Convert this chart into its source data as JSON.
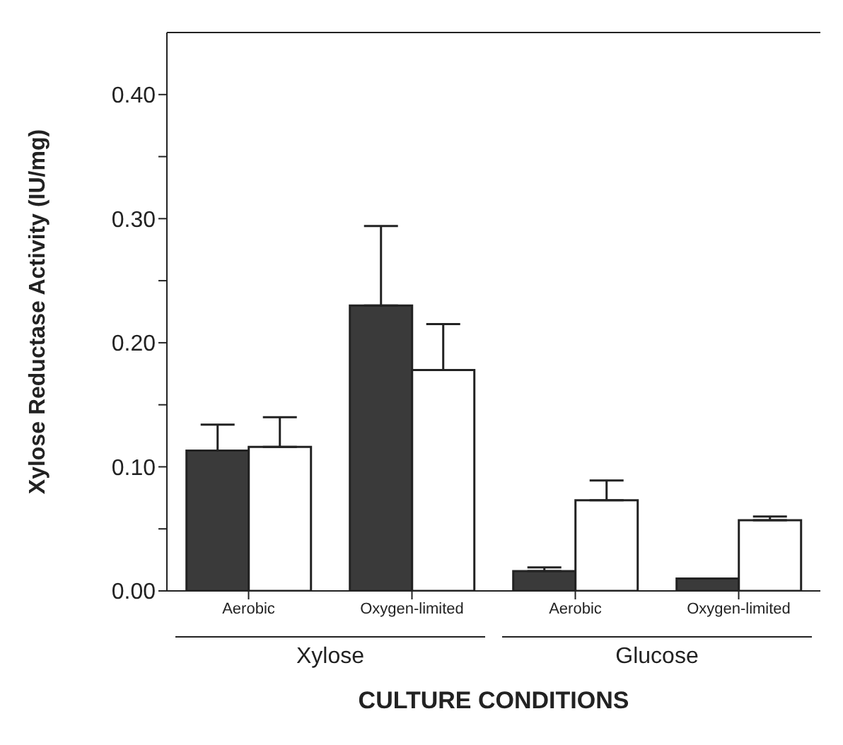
{
  "chart_data": {
    "type": "bar",
    "xlabel": "CULTURE CONDITIONS",
    "ylabel": "Xylose  Reductase  Activity  (IU/mg)",
    "categories": [
      "Aerobic",
      "Oxygen-limited",
      "Aerobic",
      "Oxygen-limited"
    ],
    "series": [
      {
        "color": "#3a3a3a",
        "values": [
          0.113,
          0.23,
          0.016,
          0.01
        ],
        "errors": [
          [
            0.113,
            0.134
          ],
          [
            0.23,
            0.294
          ],
          [
            0.016,
            0.019
          ],
          null
        ]
      },
      {
        "color": "#ffffff",
        "values": [
          0.116,
          0.178,
          0.073,
          0.057
        ],
        "errors": [
          [
            0.116,
            0.14
          ],
          [
            0.178,
            0.215
          ],
          [
            0.073,
            0.089
          ],
          [
            0.057,
            0.06
          ]
        ]
      }
    ],
    "annotations": [
      "Xylose",
      "Glucose"
    ],
    "ylim": [
      0,
      0.45
    ],
    "yticks": [
      {
        "value": 0,
        "label": "0.00"
      },
      {
        "value": 0.05,
        "label": null
      },
      {
        "value": 0.1,
        "label": "0.10"
      },
      {
        "value": 0.15,
        "label": null
      },
      {
        "value": 0.2,
        "label": "0.20"
      },
      {
        "value": 0.25,
        "label": null
      },
      {
        "value": 0.3,
        "label": "0.30"
      },
      {
        "value": 0.35,
        "label": null
      },
      {
        "value": 0.4,
        "label": "0.40"
      }
    ]
  }
}
